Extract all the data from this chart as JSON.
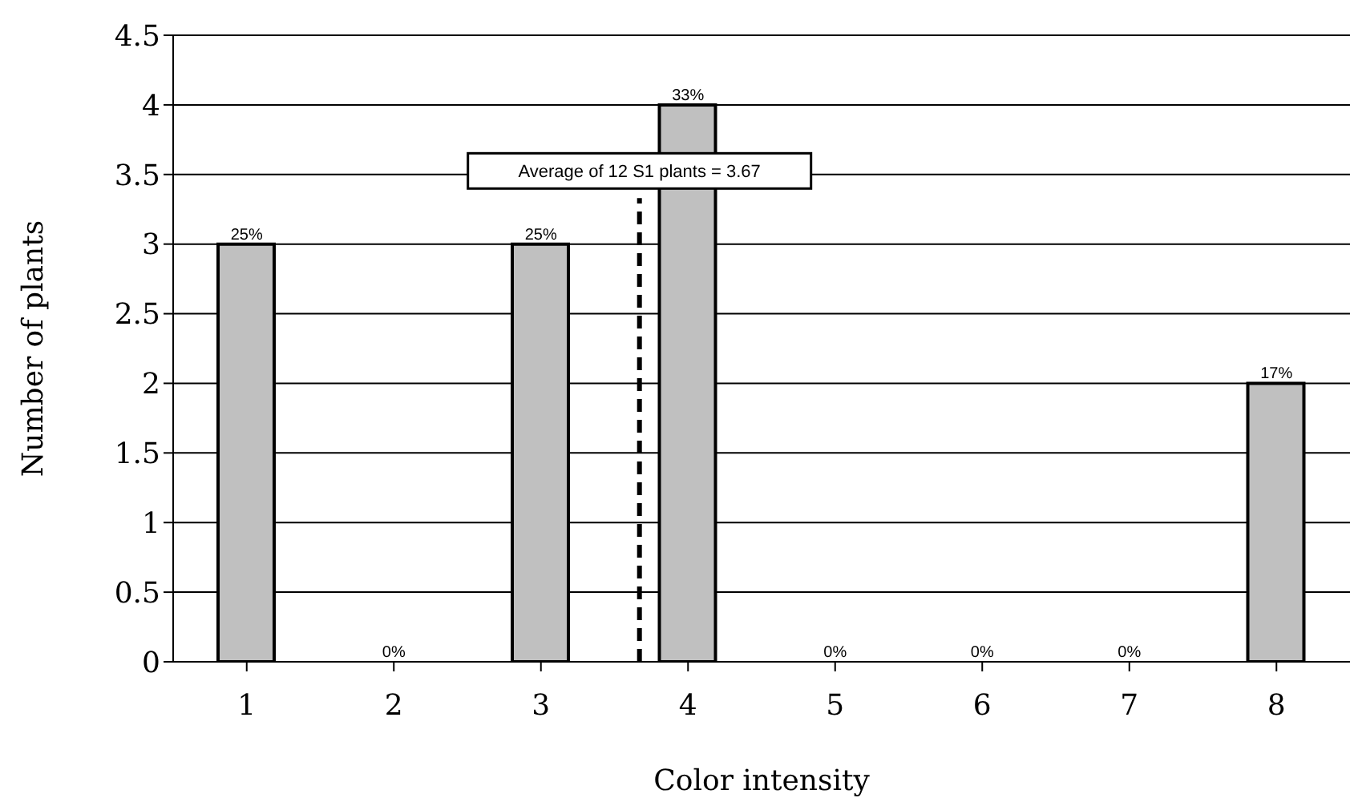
{
  "chart_data": {
    "type": "bar",
    "xlabel": "Color intensity",
    "ylabel": "Number of plants",
    "x": [
      1,
      2,
      3,
      4,
      5,
      6,
      7,
      8
    ],
    "values": [
      3,
      0,
      3,
      4,
      0,
      0,
      0,
      2
    ],
    "color": "#c0c0c0",
    "xlim": [
      0.5,
      8.5
    ],
    "xticks": [
      1,
      2,
      3,
      4,
      5,
      6,
      7,
      8
    ],
    "ylim": [
      0,
      4.5
    ],
    "yticks": [
      0,
      0.5,
      1,
      1.5,
      2,
      2.5,
      3,
      3.5,
      4,
      4.5
    ],
    "annotations": [
      {
        "text": "25%",
        "x": 1,
        "y": 3
      },
      {
        "text": "0%",
        "x": 2,
        "y": 0
      },
      {
        "text": "25%",
        "x": 3,
        "y": 3
      },
      {
        "text": "33%",
        "x": 4,
        "y": 4
      },
      {
        "text": "0%",
        "x": 5,
        "y": 0
      },
      {
        "text": "0%",
        "x": 6,
        "y": 0
      },
      {
        "text": "0%",
        "x": 7,
        "y": 0
      },
      {
        "text": "17%",
        "x": 8,
        "y": 2
      }
    ],
    "ref_lines": [
      {
        "axis": "x",
        "value": 3.67,
        "label": "Average of 12 S1 plants = 3.67",
        "line_style": "dashed",
        "color": "#000000"
      }
    ],
    "grid": "y",
    "legend": false
  }
}
